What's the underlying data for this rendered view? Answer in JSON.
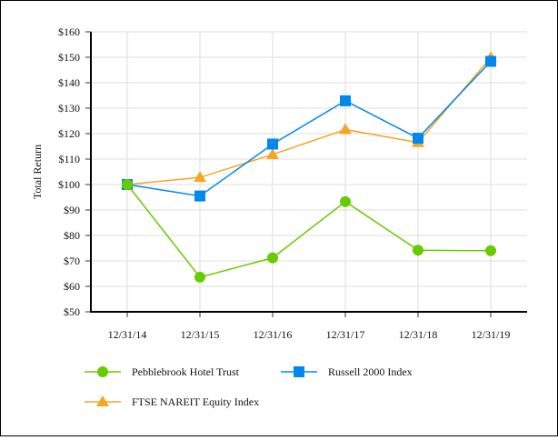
{
  "chart_data": {
    "type": "line",
    "title": "",
    "xlabel": "",
    "ylabel": "Total Return",
    "ylim": [
      50,
      160
    ],
    "yticks": [
      "$50",
      "$60",
      "$70",
      "$80",
      "$90",
      "$100",
      "$110",
      "$120",
      "$130",
      "$140",
      "$150",
      "$160"
    ],
    "grid": true,
    "legend_position": "bottom",
    "categories": [
      "12/31/14",
      "12/31/15",
      "12/31/16",
      "12/31/17",
      "12/31/18",
      "12/31/19"
    ],
    "series": [
      {
        "name": "Pebblebrook Hotel Trust",
        "marker": "circle",
        "color": "#66cc00",
        "values": [
          100,
          63.6,
          71.2,
          93.3,
          74.2,
          74.0
        ]
      },
      {
        "name": "Russell 2000 Index",
        "marker": "square",
        "color": "#0088ee",
        "values": [
          100,
          95.5,
          115.9,
          132.9,
          118.2,
          148.4
        ]
      },
      {
        "name": "FTSE NAREIT Equity Index",
        "marker": "triangle",
        "color": "#f5a623",
        "values": [
          100,
          102.8,
          111.8,
          121.6,
          116.5,
          149.9
        ]
      }
    ]
  }
}
